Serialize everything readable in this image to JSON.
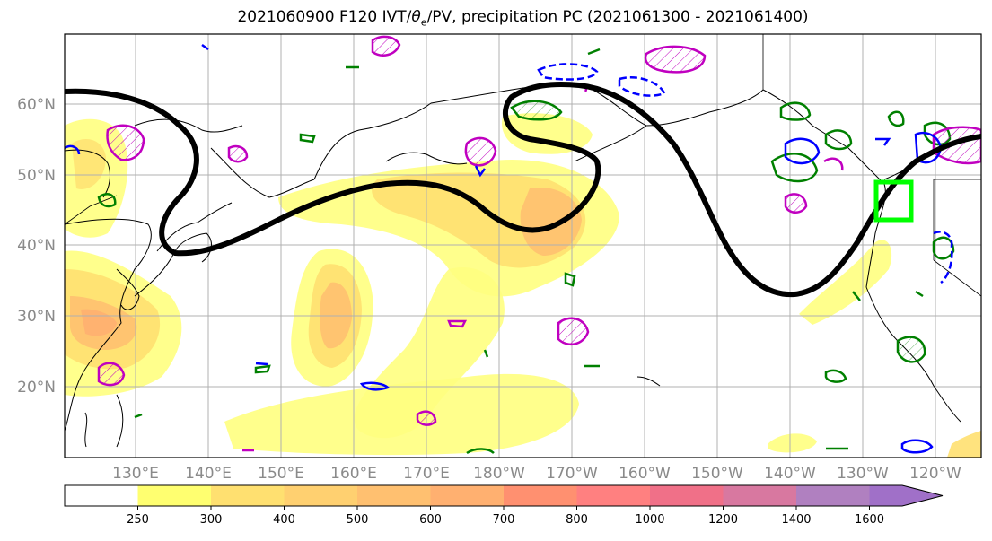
{
  "title": {
    "prefix": "2021060900 F120 IVT/",
    "theta": "θ",
    "sub": "e",
    "suffix": "/PV, precipitation PC (2021061300 - 2021061400)"
  },
  "map": {
    "lat_labels": [
      "60°N",
      "50°N",
      "40°N",
      "30°N",
      "20°N"
    ],
    "lon_labels": [
      "130°E",
      "140°E",
      "150°E",
      "160°E",
      "170°E",
      "180°W",
      "170°W",
      "160°W",
      "150°W",
      "140°W",
      "130°W",
      "120°W"
    ],
    "colors": {
      "jet_contour": "#000000",
      "pv_positive": "#c000c0",
      "pv_negative": "#0000ff",
      "theta_e": "#008000",
      "highlight_box": "#00ff00",
      "coast": "#000000",
      "grid": "#b0b0b0"
    }
  },
  "colorbar": {
    "ticks": [
      "250",
      "300",
      "400",
      "500",
      "600",
      "700",
      "800",
      "1000",
      "1200",
      "1400",
      "1600"
    ],
    "colors": [
      "#ffffff",
      "#ffff70",
      "#ffe070",
      "#ffd070",
      "#ffc070",
      "#ffb070",
      "#ff9070",
      "#ff8080",
      "#f07088",
      "#d878a0",
      "#b080c0",
      "#a070c8"
    ]
  }
}
